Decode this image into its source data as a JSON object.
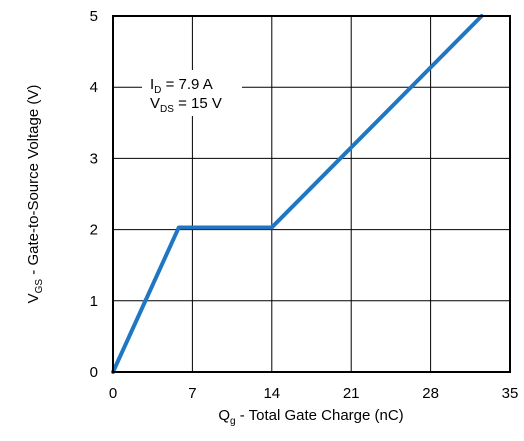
{
  "chart_data": {
    "type": "line",
    "title": "",
    "xlabel": {
      "main": "Q",
      "sub": "g",
      "rest": " - Total Gate Charge (nC)"
    },
    "ylabel": {
      "main": "V",
      "sub": "GS",
      "rest": " - Gate-to-Source Voltage (V)"
    },
    "xlim": [
      0,
      35
    ],
    "ylim": [
      0,
      5
    ],
    "x_ticks": [
      0,
      7,
      14,
      21,
      28,
      35
    ],
    "y_ticks": [
      0,
      1,
      2,
      3,
      4,
      5
    ],
    "x_tick_labels": [
      "0",
      "7",
      "14",
      "21",
      "28",
      "35"
    ],
    "y_tick_labels": [
      "0",
      "1",
      "2",
      "3",
      "4",
      "5"
    ],
    "grid": true,
    "series": [
      {
        "color": "#1f77c4",
        "x": [
          0,
          5.8,
          14,
          32.5
        ],
        "y": [
          0,
          2.03,
          2.03,
          5.0
        ]
      }
    ],
    "annotation": {
      "line1": {
        "main": "I",
        "sub": "D",
        "rest": " = 7.9 A"
      },
      "line2": {
        "main": "V",
        "sub": "DS",
        "rest": " = 15 V"
      }
    }
  }
}
